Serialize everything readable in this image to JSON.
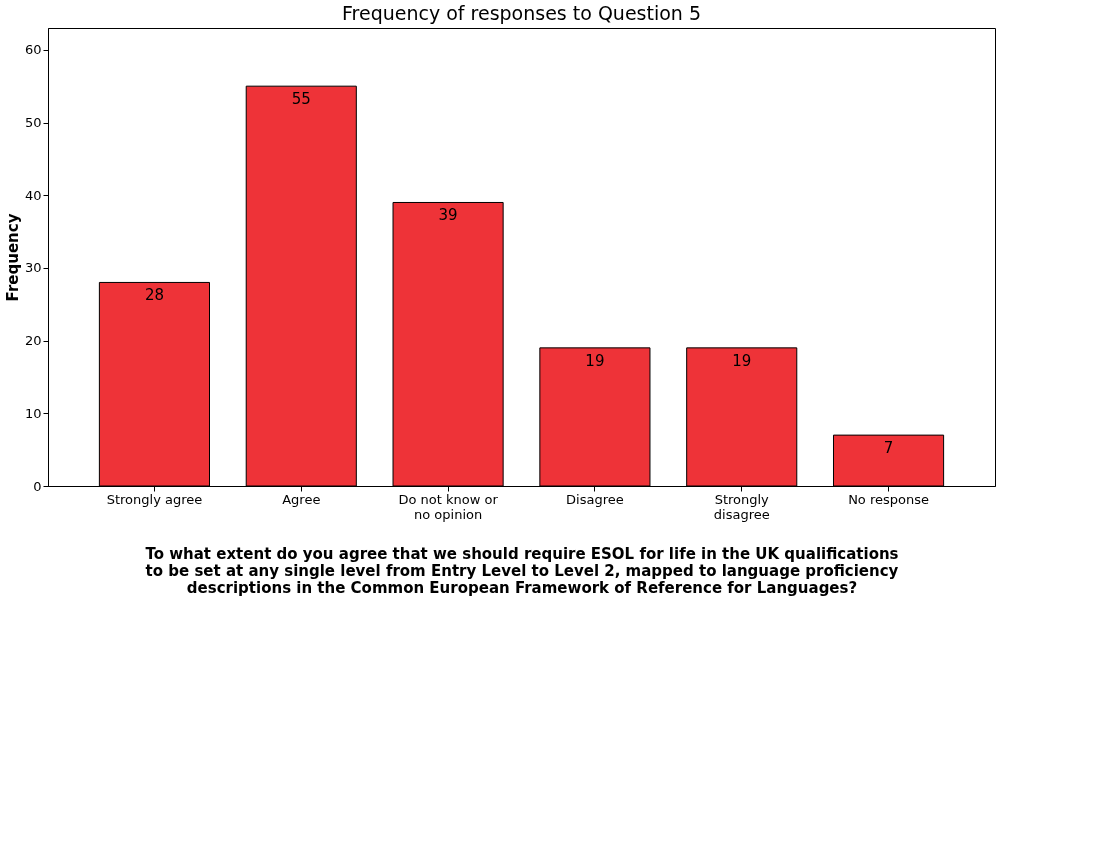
{
  "chart_data": {
    "type": "bar",
    "title": "Frequency of responses to Question 5",
    "xlabel": "To what extent do you agree that we should require ESOL for life in the UK qualifications\nto be set at any single level from Entry Level to Level 2, mapped to language proficiency\ndescriptions in the Common European Framework of Reference for Languages?",
    "ylabel": "Frequency",
    "categories": [
      "Strongly agree",
      "Agree",
      "Do not know or\nno opinion",
      "Disagree",
      "Strongly\ndisagree",
      "No response"
    ],
    "values": [
      28,
      55,
      39,
      19,
      19,
      7
    ],
    "color": "#ee3338",
    "ylim": [
      0,
      63
    ],
    "yticks": [
      0,
      10,
      20,
      30,
      40,
      50,
      60
    ],
    "grid": false,
    "data_labels": true
  }
}
